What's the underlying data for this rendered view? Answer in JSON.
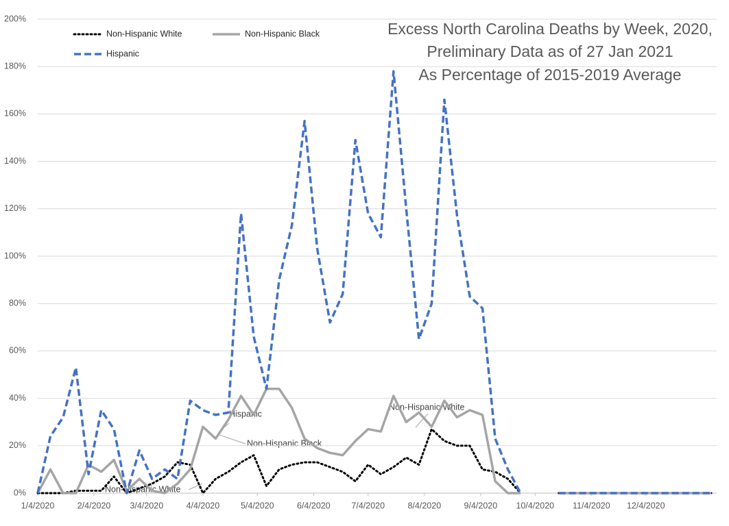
{
  "chart_data": {
    "type": "line",
    "title": [
      "Excess North Carolina Deaths by Week, 2020,",
      "Preliminary Data as of 27 Jan 2021",
      "As Percentage of 2015-2019 Average"
    ],
    "x": [
      "1/4/2020",
      "1/11/2020",
      "1/18/2020",
      "1/25/2020",
      "2/1/2020",
      "2/8/2020",
      "2/15/2020",
      "2/22/2020",
      "2/29/2020",
      "3/7/2020",
      "3/14/2020",
      "3/21/2020",
      "3/28/2020",
      "4/4/2020",
      "4/11/2020",
      "4/18/2020",
      "4/25/2020",
      "5/2/2020",
      "5/9/2020",
      "5/16/2020",
      "5/23/2020",
      "5/30/2020",
      "6/6/2020",
      "6/13/2020",
      "6/20/2020",
      "6/27/2020",
      "7/4/2020",
      "7/11/2020",
      "7/18/2020",
      "7/25/2020",
      "8/1/2020",
      "8/8/2020",
      "8/15/2020",
      "8/22/2020",
      "8/29/2020",
      "9/5/2020",
      "9/12/2020",
      "9/19/2020",
      "9/26/2020",
      "10/3/2020",
      "10/10/2020",
      "10/17/2020",
      "10/24/2020",
      "10/31/2020",
      "11/7/2020",
      "11/14/2020",
      "11/21/2020",
      "11/28/2020",
      "12/5/2020",
      "12/12/2020",
      "12/19/2020",
      "12/26/2020",
      "1/2/2021",
      "1/9/2021"
    ],
    "series": [
      {
        "name": "Non-Hispanic White",
        "color": "#000000",
        "dash": "dotted",
        "values": [
          0,
          0,
          0,
          1,
          1,
          1,
          7,
          0,
          2,
          4,
          7,
          13,
          12,
          0,
          6,
          9,
          13,
          16,
          3,
          10,
          12,
          13,
          13,
          11,
          9,
          5,
          12,
          8,
          11,
          15,
          12,
          27,
          22,
          20,
          20,
          10,
          9,
          6,
          0,
          null,
          null,
          0,
          0,
          0,
          0,
          0,
          0,
          0,
          0,
          0,
          0,
          0,
          0,
          0
        ]
      },
      {
        "name": "Non-Hispanic Black",
        "color": "#a5a5a5",
        "dash": "solid",
        "values": [
          0,
          10,
          0,
          0,
          12,
          9,
          14,
          1,
          6,
          1,
          0,
          4,
          10,
          28,
          23,
          31,
          41,
          33,
          44,
          44,
          36,
          23,
          19,
          17,
          16,
          22,
          27,
          26,
          41,
          30,
          34,
          28,
          39,
          32,
          35,
          33,
          5,
          0,
          0,
          null,
          null,
          0,
          0,
          0,
          0,
          0,
          0,
          0,
          0,
          0,
          0,
          0,
          0,
          0
        ]
      },
      {
        "name": "Hispanic",
        "color": "#4472c4",
        "dash": "dashed",
        "values": [
          0,
          24,
          32,
          53,
          8,
          35,
          27,
          0,
          18,
          6,
          10,
          6,
          39,
          35,
          33,
          34,
          118,
          66,
          44,
          90,
          113,
          157,
          103,
          72,
          84,
          149,
          118,
          108,
          178,
          120,
          65,
          80,
          166,
          117,
          83,
          78,
          23,
          10,
          0,
          null,
          null,
          0,
          0,
          0,
          0,
          0,
          0,
          0,
          0,
          0,
          0,
          0,
          0,
          0
        ]
      }
    ],
    "xlim": [
      "1/4/2020",
      "1/12/2021"
    ],
    "xticks": [
      "1/4/2020",
      "2/4/2020",
      "3/4/2020",
      "4/4/2020",
      "5/4/2020",
      "6/4/2020",
      "7/4/2020",
      "8/4/2020",
      "9/4/2020",
      "10/4/2020",
      "11/4/2020",
      "12/4/2020"
    ],
    "ylim": [
      0,
      200
    ],
    "yticks": [
      {
        "value": 0,
        "label": "0%"
      },
      {
        "value": 20,
        "label": "20%"
      },
      {
        "value": 40,
        "label": "40%"
      },
      {
        "value": 60,
        "label": "60%"
      },
      {
        "value": 80,
        "label": "80%"
      },
      {
        "value": 100,
        "label": "100%"
      },
      {
        "value": 120,
        "label": "120%"
      },
      {
        "value": 140,
        "label": "140%"
      },
      {
        "value": 160,
        "label": "160%"
      },
      {
        "value": 180,
        "label": "180%"
      },
      {
        "value": 200,
        "label": "200%"
      }
    ],
    "grid": true,
    "legend": "top-left",
    "annotations": [
      "Hispanic",
      "Non-Hispanic Black",
      "Non-Hispanic White",
      "Non-Hispanic White"
    ]
  }
}
